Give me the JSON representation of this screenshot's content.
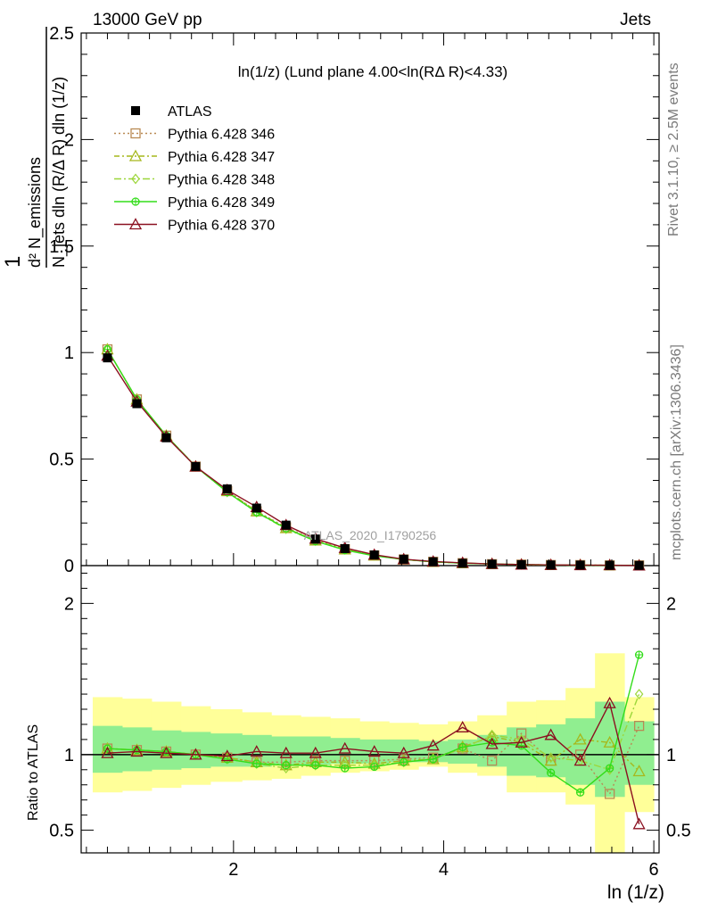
{
  "header": {
    "left": "13000 GeV pp",
    "right": "Jets"
  },
  "top_title": "ln(1/z) (Lund plane 4.00<ln(RΔ R)<4.33)",
  "top_ylabel": "1/N_jets d²N_emissions / dln(R/Δ R) dln(1/z)",
  "bottom_ylabel": "Ratio to ATLAS",
  "xlabel": "ln (1/z)",
  "watermark": "ATLAS_2020_I1790256",
  "side_text_top": "Rivet 3.1.10, ≥ 2.5M events",
  "side_text_bottom": "mcplots.cern.ch [arXiv:1306.3436]",
  "chart_data": [
    {
      "type": "line",
      "panel": "main",
      "xlim": [
        0.55,
        6.05
      ],
      "ylim": [
        0,
        2.5
      ],
      "yticks": [
        "0",
        "0.5",
        "1",
        "1.5",
        "2",
        "2.5"
      ],
      "x": [
        0.8,
        1.08,
        1.36,
        1.64,
        1.94,
        2.22,
        2.5,
        2.78,
        3.06,
        3.34,
        3.62,
        3.9,
        4.18,
        4.46,
        4.74,
        5.02,
        5.3,
        5.58,
        5.86
      ],
      "series": [
        {
          "name": "ATLAS",
          "color": "#000000",
          "marker": "square-filled",
          "values": [
            0.975,
            0.76,
            0.6,
            0.465,
            0.36,
            0.27,
            0.19,
            0.125,
            0.08,
            0.05,
            0.03,
            0.018,
            0.011,
            0.007,
            0.0045,
            0.003,
            0.0025,
            0.0015,
            0.001
          ]
        },
        {
          "name": "Pythia 6.428 346",
          "color": "#b98a54",
          "marker": "square-open",
          "dash": "2,3",
          "values": [
            1.015,
            0.78,
            0.61,
            0.465,
            0.35,
            0.255,
            0.18,
            0.12,
            0.077,
            0.048,
            0.029,
            0.018,
            0.0115,
            0.0068,
            0.0048,
            0.0029,
            0.0025,
            0.0011,
            0.0012
          ]
        },
        {
          "name": "Pythia 6.428 347",
          "color": "#a6b81c",
          "marker": "triangle-open",
          "dash": "6,3,2,3",
          "values": [
            1.015,
            0.78,
            0.61,
            0.465,
            0.35,
            0.255,
            0.176,
            0.118,
            0.076,
            0.047,
            0.029,
            0.0175,
            0.0115,
            0.0078,
            0.0049,
            0.0029,
            0.0027,
            0.0016,
            0.0009
          ]
        },
        {
          "name": "Pythia 6.428 348",
          "color": "#9cd63a",
          "marker": "diamond-open",
          "dash": "8,3,2,3",
          "values": [
            1.015,
            0.78,
            0.61,
            0.465,
            0.345,
            0.25,
            0.172,
            0.116,
            0.075,
            0.047,
            0.029,
            0.0175,
            0.0115,
            0.0079,
            0.0048,
            0.0029,
            0.0024,
            0.0014,
            0.0014
          ]
        },
        {
          "name": "Pythia 6.428 349",
          "color": "#33dd1a",
          "marker": "circle-plus",
          "dash": "",
          "values": [
            1.015,
            0.78,
            0.61,
            0.465,
            0.345,
            0.25,
            0.175,
            0.115,
            0.073,
            0.046,
            0.029,
            0.0175,
            0.0115,
            0.0075,
            0.0048,
            0.0026,
            0.0019,
            0.0014,
            0.0017
          ]
        },
        {
          "name": "Pythia 6.428 370",
          "color": "#8b1020",
          "marker": "triangle-open",
          "dash": "",
          "values": [
            0.985,
            0.77,
            0.605,
            0.465,
            0.355,
            0.275,
            0.19,
            0.126,
            0.083,
            0.051,
            0.03,
            0.019,
            0.013,
            0.0077,
            0.005,
            0.0034,
            0.0024,
            0.002,
            0.0005
          ]
        }
      ]
    },
    {
      "type": "line",
      "panel": "ratio",
      "xlim": [
        0.55,
        6.05
      ],
      "ylim": [
        0.35,
        2.25
      ],
      "yticks": [
        "0.5",
        "1",
        "2"
      ],
      "xticks": [
        "2",
        "4",
        "6"
      ],
      "bin_edges": [
        0.66,
        0.94,
        1.22,
        1.5,
        1.78,
        2.08,
        2.36,
        2.64,
        2.92,
        3.2,
        3.48,
        3.76,
        4.04,
        4.32,
        4.6,
        4.88,
        5.16,
        5.44,
        5.72,
        6.0
      ],
      "band_outer": [
        [
          0.75,
          1.38
        ],
        [
          0.76,
          1.37
        ],
        [
          0.78,
          1.35
        ],
        [
          0.8,
          1.32
        ],
        [
          0.82,
          1.3
        ],
        [
          0.83,
          1.28
        ],
        [
          0.84,
          1.26
        ],
        [
          0.86,
          1.25
        ],
        [
          0.88,
          1.24
        ],
        [
          0.89,
          1.22
        ],
        [
          0.9,
          1.21
        ],
        [
          0.92,
          1.2
        ],
        [
          0.88,
          1.22
        ],
        [
          0.86,
          1.26
        ],
        [
          0.75,
          1.35
        ],
        [
          0.75,
          1.36
        ],
        [
          0.67,
          1.44
        ],
        [
          0.35,
          1.67
        ],
        [
          0.62,
          1.38
        ]
      ],
      "band_inner": [
        [
          0.88,
          1.19
        ],
        [
          0.89,
          1.18
        ],
        [
          0.9,
          1.16
        ],
        [
          0.91,
          1.15
        ],
        [
          0.92,
          1.14
        ],
        [
          0.92,
          1.13
        ],
        [
          0.93,
          1.12
        ],
        [
          0.93,
          1.12
        ],
        [
          0.94,
          1.11
        ],
        [
          0.94,
          1.1
        ],
        [
          0.95,
          1.1
        ],
        [
          0.95,
          1.09
        ],
        [
          0.94,
          1.1
        ],
        [
          0.92,
          1.13
        ],
        [
          0.86,
          1.18
        ],
        [
          0.85,
          1.2
        ],
        [
          0.8,
          1.24
        ],
        [
          0.72,
          1.35
        ],
        [
          0.8,
          1.22
        ]
      ],
      "series": [
        {
          "name": "Pythia 6.428 346",
          "values": [
            1.04,
            1.03,
            1.02,
            1.0,
            0.98,
            0.95,
            0.95,
            0.96,
            0.96,
            0.96,
            0.97,
            0.98,
            1.04,
            0.96,
            1.14,
            0.96,
            1.0,
            0.74,
            1.19
          ]
        },
        {
          "name": "Pythia 6.428 347",
          "values": [
            1.04,
            1.03,
            1.02,
            1.0,
            0.98,
            0.95,
            0.93,
            0.95,
            0.95,
            0.94,
            0.96,
            0.97,
            1.05,
            1.12,
            1.08,
            0.96,
            1.1,
            1.08,
            0.89
          ]
        },
        {
          "name": "Pythia 6.428 348",
          "values": [
            1.04,
            1.03,
            1.02,
            1.0,
            0.97,
            0.94,
            0.91,
            0.93,
            0.93,
            0.93,
            0.95,
            0.97,
            1.04,
            1.13,
            1.1,
            0.98,
            0.96,
            0.9,
            1.4
          ]
        },
        {
          "name": "Pythia 6.428 349",
          "values": [
            1.04,
            1.03,
            1.02,
            1.0,
            0.97,
            0.94,
            0.93,
            0.93,
            0.91,
            0.92,
            0.95,
            0.97,
            1.05,
            1.08,
            1.06,
            0.88,
            0.75,
            0.91,
            1.66
          ]
        },
        {
          "name": "Pythia 6.428 370",
          "values": [
            1.01,
            1.02,
            1.01,
            1.0,
            0.99,
            1.02,
            1.01,
            1.01,
            1.04,
            1.02,
            1.01,
            1.06,
            1.18,
            1.07,
            1.08,
            1.13,
            0.96,
            1.34,
            0.54
          ]
        }
      ]
    }
  ]
}
